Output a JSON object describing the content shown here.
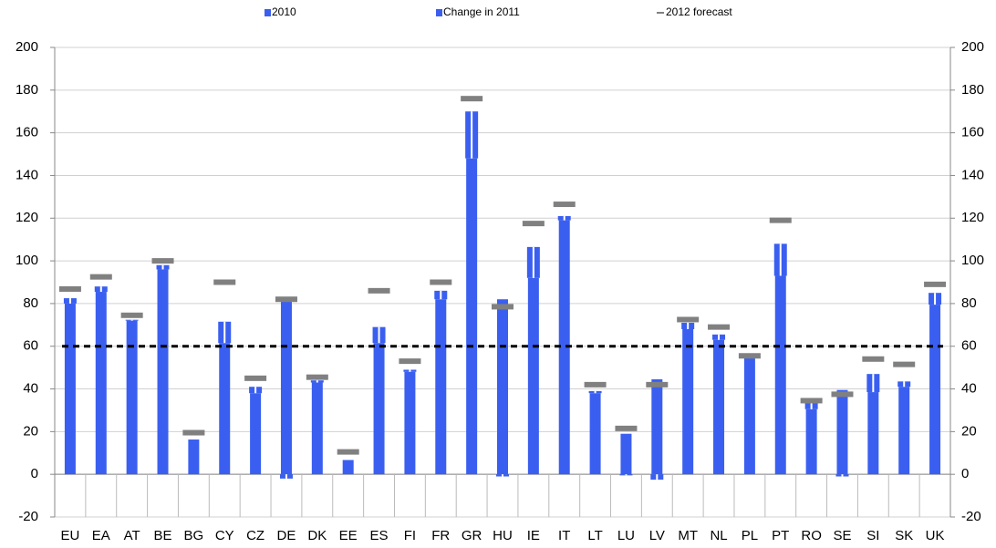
{
  "chart_data": {
    "type": "bar",
    "categories": [
      "EU",
      "EA",
      "AT",
      "BE",
      "BG",
      "CY",
      "CZ",
      "DE",
      "DK",
      "EE",
      "ES",
      "FI",
      "FR",
      "GR",
      "HU",
      "IE",
      "IT",
      "LT",
      "LU",
      "LV",
      "MT",
      "NL",
      "PL",
      "PT",
      "RO",
      "SE",
      "SI",
      "SK",
      "UK"
    ],
    "series": [
      {
        "name": "2010",
        "color": "#3a5ff0",
        "values": [
          80,
          85.5,
          72,
          96,
          16.3,
          61.5,
          38,
          83,
          43,
          6.7,
          61.5,
          48,
          82,
          148,
          82,
          92,
          119,
          38,
          19,
          44.5,
          68,
          63,
          55,
          93,
          30.5,
          39.5,
          38.5,
          41,
          79.5
        ]
      },
      {
        "name": "Change in 2011",
        "color": "#3a5ff0",
        "values": [
          2.5,
          2.5,
          0.4,
          2,
          0,
          10,
          3,
          -2,
          1,
          0,
          7.5,
          1,
          4,
          22,
          -1,
          14.5,
          2,
          1,
          -0.5,
          -2.5,
          3,
          2.5,
          1,
          15,
          3,
          -1,
          8.5,
          2.5,
          5.5
        ]
      },
      {
        "name": "2012 forecast",
        "color": "#808080",
        "values": [
          86.8,
          92.5,
          74.5,
          100,
          19.5,
          90,
          45,
          82,
          45.5,
          10.5,
          86,
          53,
          90,
          176,
          78.5,
          117.5,
          126.5,
          42,
          21.5,
          42,
          72.5,
          69,
          55.5,
          119,
          34.5,
          37.5,
          54,
          51.5,
          89
        ]
      }
    ],
    "reference_line": 60,
    "ylim": [
      -20,
      200
    ],
    "yticks": [
      -20,
      0,
      20,
      40,
      60,
      80,
      100,
      120,
      140,
      160,
      180,
      200
    ],
    "y2lim": [
      -20,
      200
    ],
    "y2ticks": [
      -20,
      0,
      20,
      40,
      60,
      80,
      100,
      120,
      140,
      160,
      180,
      200
    ],
    "grid": true
  }
}
